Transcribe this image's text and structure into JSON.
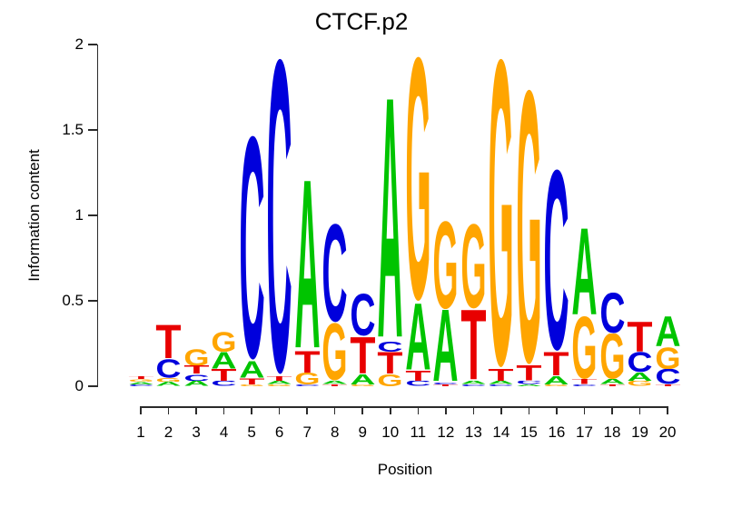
{
  "title": "CTCF.p2",
  "letter_colors": {
    "A": "#00C400",
    "C": "#0000DC",
    "G": "#FFA500",
    "T": "#E80000"
  },
  "axis_color": "#2b2b2b",
  "background_color": "#ffffff",
  "chart_data": {
    "type": "sequence-logo",
    "title": "CTCF.p2",
    "xlabel": "Position",
    "ylabel": "Information content",
    "ylim": [
      0,
      2
    ],
    "yticks": [
      "0",
      "0.5",
      "1",
      "1.5",
      "2"
    ],
    "positions": [
      1,
      2,
      3,
      4,
      5,
      6,
      7,
      8,
      9,
      10,
      11,
      12,
      13,
      14,
      15,
      16,
      17,
      18,
      19,
      20
    ],
    "stacks_note": "per position, letters bottom-to-top with information content heights (bits)",
    "stacks": [
      [
        {
          "base": "C",
          "ic": 0.01
        },
        {
          "base": "A",
          "ic": 0.015
        },
        {
          "base": "G",
          "ic": 0.015
        },
        {
          "base": "T",
          "ic": 0.02
        }
      ],
      [
        {
          "base": "A",
          "ic": 0.025
        },
        {
          "base": "G",
          "ic": 0.025
        },
        {
          "base": "C",
          "ic": 0.11
        },
        {
          "base": "T",
          "ic": 0.2
        }
      ],
      [
        {
          "base": "A",
          "ic": 0.03
        },
        {
          "base": "C",
          "ic": 0.04
        },
        {
          "base": "T",
          "ic": 0.05
        },
        {
          "base": "G",
          "ic": 0.1
        }
      ],
      [
        {
          "base": "C",
          "ic": 0.03
        },
        {
          "base": "T",
          "ic": 0.07
        },
        {
          "base": "A",
          "ic": 0.1
        },
        {
          "base": "G",
          "ic": 0.12
        }
      ],
      [
        {
          "base": "G",
          "ic": 0.01
        },
        {
          "base": "T",
          "ic": 0.04
        },
        {
          "base": "A",
          "ic": 0.1
        },
        {
          "base": "C",
          "ic": 1.32
        }
      ],
      [
        {
          "base": "G",
          "ic": 0.01
        },
        {
          "base": "A",
          "ic": 0.02
        },
        {
          "base": "T",
          "ic": 0.03
        },
        {
          "base": "C",
          "ic": 1.86
        }
      ],
      [
        {
          "base": "C",
          "ic": 0.01
        },
        {
          "base": "G",
          "ic": 0.07
        },
        {
          "base": "T",
          "ic": 0.13
        },
        {
          "base": "A",
          "ic": 1.01
        }
      ],
      [
        {
          "base": "T",
          "ic": 0.01
        },
        {
          "base": "A",
          "ic": 0.02
        },
        {
          "base": "G",
          "ic": 0.34
        },
        {
          "base": "C",
          "ic": 0.58
        }
      ],
      [
        {
          "base": "G",
          "ic": 0.01
        },
        {
          "base": "A",
          "ic": 0.06
        },
        {
          "base": "T",
          "ic": 0.22
        },
        {
          "base": "C",
          "ic": 0.25
        }
      ],
      [
        {
          "base": "G",
          "ic": 0.07
        },
        {
          "base": "T",
          "ic": 0.13
        },
        {
          "base": "C",
          "ic": 0.06
        },
        {
          "base": "A",
          "ic": 1.44
        }
      ],
      [
        {
          "base": "C",
          "ic": 0.03
        },
        {
          "base": "T",
          "ic": 0.06
        },
        {
          "base": "A",
          "ic": 0.4
        },
        {
          "base": "G",
          "ic": 1.44
        }
      ],
      [
        {
          "base": "T",
          "ic": 0.01
        },
        {
          "base": "C",
          "ic": 0.01
        },
        {
          "base": "A",
          "ic": 0.43
        },
        {
          "base": "G",
          "ic": 0.52
        }
      ],
      [
        {
          "base": "C",
          "ic": 0.01
        },
        {
          "base": "A",
          "ic": 0.02
        },
        {
          "base": "T",
          "ic": 0.42
        },
        {
          "base": "G",
          "ic": 0.5
        }
      ],
      [
        {
          "base": "C",
          "ic": 0.01
        },
        {
          "base": "A",
          "ic": 0.02
        },
        {
          "base": "T",
          "ic": 0.07
        },
        {
          "base": "G",
          "ic": 1.82
        }
      ],
      [
        {
          "base": "A",
          "ic": 0.01
        },
        {
          "base": "C",
          "ic": 0.02
        },
        {
          "base": "T",
          "ic": 0.09
        },
        {
          "base": "G",
          "ic": 1.62
        }
      ],
      [
        {
          "base": "G",
          "ic": 0.01
        },
        {
          "base": "A",
          "ic": 0.05
        },
        {
          "base": "T",
          "ic": 0.14
        },
        {
          "base": "C",
          "ic": 1.07
        }
      ],
      [
        {
          "base": "C",
          "ic": 0.01
        },
        {
          "base": "T",
          "ic": 0.03
        },
        {
          "base": "G",
          "ic": 0.37
        },
        {
          "base": "A",
          "ic": 0.52
        }
      ],
      [
        {
          "base": "T",
          "ic": 0.01
        },
        {
          "base": "A",
          "ic": 0.03
        },
        {
          "base": "G",
          "ic": 0.27
        },
        {
          "base": "C",
          "ic": 0.24
        }
      ],
      [
        {
          "base": "G",
          "ic": 0.03
        },
        {
          "base": "A",
          "ic": 0.05
        },
        {
          "base": "C",
          "ic": 0.12
        },
        {
          "base": "T",
          "ic": 0.18
        }
      ],
      [
        {
          "base": "T",
          "ic": 0.01
        },
        {
          "base": "C",
          "ic": 0.09
        },
        {
          "base": "G",
          "ic": 0.13
        },
        {
          "base": "A",
          "ic": 0.18
        }
      ]
    ]
  }
}
